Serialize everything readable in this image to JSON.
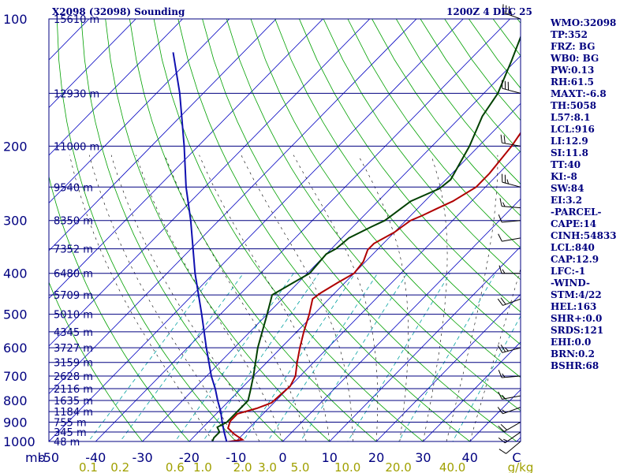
{
  "header": {
    "station": "X2098 (32098) Sounding",
    "time": "1200Z  4 DEC 25"
  },
  "indices": [
    "WMO:32098",
    "TP:352",
    "FRZ: BG",
    "WB0: BG",
    "PW:0.13",
    "RH:61.5",
    "MAXT:-6.8",
    "TH:5058",
    "L57:8.1",
    "LCL:916",
    "LI:12.9",
    "SI:11.8",
    "TT:40",
    "KI:-8",
    "SW:84",
    "EI:3.2",
    "-PARCEL-",
    "CAPE:14",
    "CINH:54833",
    "LCL:840",
    "CAP:12.9",
    "LFC:-1",
    "-WIND-",
    "STM:4/22",
    "HEL:163",
    "SHR+:0.0",
    "SRDS:121",
    "EHI:0.0",
    "BRN:0.2",
    "BSHR:68"
  ],
  "colors": {
    "temperature": "#b00000",
    "dewpoint": "#004000",
    "parcel": "#1010b0",
    "isobar": "#000080",
    "isotherm": "#0000c0",
    "dry_adiabat": "#00a000",
    "moist_adiabat": "#000000",
    "mixing_ratio": "#00a0a0",
    "barb": "#000000"
  },
  "chart_data": {
    "type": "skew-t",
    "title": "X2098 (32098) Sounding",
    "xlabel": "°C",
    "ylabel": "mb",
    "pressure_range_mb": [
      1000,
      100
    ],
    "temperature_range_c": [
      -50,
      50
    ],
    "pressure_levels": [
      {
        "p": 100,
        "label": "100",
        "height": "15610 m"
      },
      {
        "p": 150,
        "label": "",
        "height": "12930 m"
      },
      {
        "p": 200,
        "label": "200",
        "height": "11000 m"
      },
      {
        "p": 250,
        "label": "",
        "height": "9540 m"
      },
      {
        "p": 300,
        "label": "300",
        "height": "8350 m"
      },
      {
        "p": 350,
        "label": "",
        "height": "7352 m"
      },
      {
        "p": 400,
        "label": "400",
        "height": "6480 m"
      },
      {
        "p": 450,
        "label": "",
        "height": "5709 m"
      },
      {
        "p": 500,
        "label": "500",
        "height": "5010 m"
      },
      {
        "p": 550,
        "label": "",
        "height": "4345 m"
      },
      {
        "p": 600,
        "label": "600",
        "height": "3727 m"
      },
      {
        "p": 650,
        "label": "",
        "height": "3159 m"
      },
      {
        "p": 700,
        "label": "700",
        "height": "2628 m"
      },
      {
        "p": 750,
        "label": "",
        "height": "2116 m"
      },
      {
        "p": 800,
        "label": "800",
        "height": "1635 m"
      },
      {
        "p": 850,
        "label": "",
        "height": "1184 m"
      },
      {
        "p": 900,
        "label": "900",
        "height": "755 m"
      },
      {
        "p": 950,
        "label": "",
        "height": "345 m"
      },
      {
        "p": 1000,
        "label": "1000",
        "height": "48 m"
      }
    ],
    "temp_ticks": [
      "-50",
      "-40",
      "-30",
      "-20",
      "-10",
      "0",
      "10",
      "20",
      "30",
      "40",
      "C"
    ],
    "temp_tick_values": [
      -50,
      -40,
      -30,
      -20,
      -10,
      0,
      10,
      20,
      30,
      40,
      50
    ],
    "mixing_ratio_ticks": [
      "0.1",
      "0.2",
      "0.6",
      "1.0",
      "2.0",
      "3.0",
      "5.0",
      "10.0",
      "20.0",
      "40.0",
      "g/kg"
    ],
    "mixing_ratio_values": [
      0.1,
      0.2,
      0.6,
      1.0,
      2.0,
      3.0,
      5.0,
      10.0,
      20.0,
      40.0
    ],
    "temperature": [
      {
        "p": 1003,
        "t": -12.0
      },
      {
        "p": 990,
        "t": -9.0
      },
      {
        "p": 960,
        "t": -12.0
      },
      {
        "p": 930,
        "t": -14.5
      },
      {
        "p": 895,
        "t": -15.5
      },
      {
        "p": 860,
        "t": -15.5
      },
      {
        "p": 835,
        "t": -12.5
      },
      {
        "p": 810,
        "t": -10.5
      },
      {
        "p": 775,
        "t": -10.3
      },
      {
        "p": 740,
        "t": -10.0
      },
      {
        "p": 700,
        "t": -11.0
      },
      {
        "p": 650,
        "t": -13.5
      },
      {
        "p": 600,
        "t": -16.0
      },
      {
        "p": 550,
        "t": -18.5
      },
      {
        "p": 500,
        "t": -21.0
      },
      {
        "p": 460,
        "t": -23.5
      },
      {
        "p": 445,
        "t": -23.0
      },
      {
        "p": 420,
        "t": -21.5
      },
      {
        "p": 400,
        "t": -20.0
      },
      {
        "p": 375,
        "t": -20.5
      },
      {
        "p": 352,
        "t": -22.0
      },
      {
        "p": 340,
        "t": -22.0
      },
      {
        "p": 320,
        "t": -20.0
      },
      {
        "p": 300,
        "t": -19.0
      },
      {
        "p": 292,
        "t": -17.5
      },
      {
        "p": 282,
        "t": -16.0
      },
      {
        "p": 270,
        "t": -14.0
      },
      {
        "p": 250,
        "t": -12.0
      },
      {
        "p": 232,
        "t": -12.0
      },
      {
        "p": 200,
        "t": -13.0
      },
      {
        "p": 168,
        "t": -15.0
      },
      {
        "p": 150,
        "t": -15.5
      },
      {
        "p": 130,
        "t": -18.0
      },
      {
        "p": 112,
        "t": -25.0
      },
      {
        "p": 106,
        "t": -30.0
      },
      {
        "p": 100,
        "t": -35.0
      }
    ],
    "dewpoint": [
      {
        "p": 1003,
        "t": -15.0
      },
      {
        "p": 980,
        "t": -15.5
      },
      {
        "p": 950,
        "t": -15.5
      },
      {
        "p": 925,
        "t": -17.0
      },
      {
        "p": 900,
        "t": -16.0
      },
      {
        "p": 870,
        "t": -16.0
      },
      {
        "p": 850,
        "t": -16.0
      },
      {
        "p": 800,
        "t": -16.0
      },
      {
        "p": 760,
        "t": -17.5
      },
      {
        "p": 700,
        "t": -20.0
      },
      {
        "p": 600,
        "t": -25.0
      },
      {
        "p": 500,
        "t": -30.0
      },
      {
        "p": 450,
        "t": -33.0
      },
      {
        "p": 420,
        "t": -31.0
      },
      {
        "p": 400,
        "t": -29.5
      },
      {
        "p": 360,
        "t": -30.0
      },
      {
        "p": 350,
        "t": -29.0
      },
      {
        "p": 330,
        "t": -28.5
      },
      {
        "p": 310,
        "t": -26.0
      },
      {
        "p": 300,
        "t": -24.5
      },
      {
        "p": 290,
        "t": -24.0
      },
      {
        "p": 270,
        "t": -23.0
      },
      {
        "p": 252,
        "t": -19.5
      },
      {
        "p": 240,
        "t": -19.0
      },
      {
        "p": 200,
        "t": -22.0
      },
      {
        "p": 170,
        "t": -25.5
      },
      {
        "p": 150,
        "t": -27.0
      },
      {
        "p": 125,
        "t": -31.0
      },
      {
        "p": 110,
        "t": -34.0
      },
      {
        "p": 105,
        "t": -35.0
      },
      {
        "p": 100,
        "t": -33.0
      }
    ],
    "parcel": [
      {
        "p": 1000,
        "t": -12.0
      },
      {
        "p": 950,
        "t": -14.5
      },
      {
        "p": 900,
        "t": -17.0
      },
      {
        "p": 850,
        "t": -19.5
      },
      {
        "p": 800,
        "t": -22.5
      },
      {
        "p": 750,
        "t": -25.5
      },
      {
        "p": 700,
        "t": -29.0
      },
      {
        "p": 600,
        "t": -36.0
      },
      {
        "p": 500,
        "t": -44.0
      },
      {
        "p": 400,
        "t": -54.0
      },
      {
        "p": 300,
        "t": -66.0
      },
      {
        "p": 250,
        "t": -74.0
      },
      {
        "p": 200,
        "t": -83.0
      },
      {
        "p": 150,
        "t": -95.0
      },
      {
        "p": 120,
        "t": -105.0
      }
    ],
    "wind_barbs": [
      {
        "p": 100,
        "dir": 290,
        "spd": 35
      },
      {
        "p": 150,
        "dir": 285,
        "spd": 30
      },
      {
        "p": 200,
        "dir": 280,
        "spd": 20
      },
      {
        "p": 250,
        "dir": 285,
        "spd": 25
      },
      {
        "p": 280,
        "dir": 275,
        "spd": 15
      },
      {
        "p": 300,
        "dir": 265,
        "spd": 10
      },
      {
        "p": 330,
        "dir": 260,
        "spd": 10
      },
      {
        "p": 400,
        "dir": 270,
        "spd": 15
      },
      {
        "p": 460,
        "dir": 250,
        "spd": 20
      },
      {
        "p": 600,
        "dir": 255,
        "spd": 25
      },
      {
        "p": 700,
        "dir": 265,
        "spd": 15
      },
      {
        "p": 780,
        "dir": 260,
        "spd": 15
      },
      {
        "p": 830,
        "dir": 250,
        "spd": 15
      },
      {
        "p": 900,
        "dir": 240,
        "spd": 20
      },
      {
        "p": 950,
        "dir": 235,
        "spd": 15
      },
      {
        "p": 1000,
        "dir": 230,
        "spd": 10
      }
    ],
    "grid": true
  }
}
